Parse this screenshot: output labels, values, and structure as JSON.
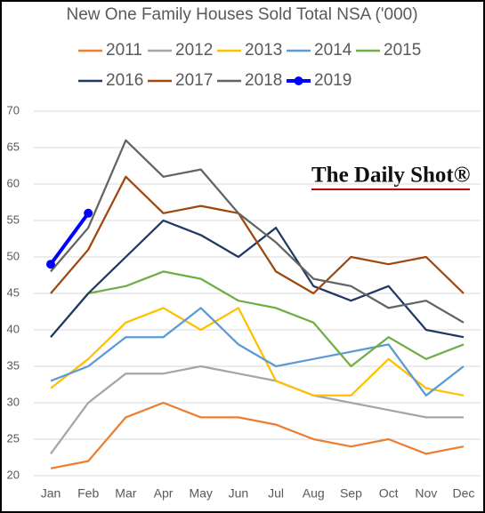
{
  "chart_data": {
    "type": "line",
    "title": "New One Family Houses Sold Total NSA ('000)",
    "watermark": "The Daily Shot®",
    "categories": [
      "Jan",
      "Feb",
      "Mar",
      "Apr",
      "May",
      "Jun",
      "Jul",
      "Aug",
      "Sep",
      "Oct",
      "Nov",
      "Dec"
    ],
    "series": [
      {
        "name": "2011",
        "color": "#ed7d31",
        "values": [
          21,
          22,
          28,
          30,
          28,
          28,
          27,
          25,
          24,
          25,
          23,
          24
        ]
      },
      {
        "name": "2012",
        "color": "#a5a5a5",
        "values": [
          23,
          30,
          34,
          34,
          35,
          34,
          33,
          31,
          30,
          29,
          28,
          28
        ]
      },
      {
        "name": "2013",
        "color": "#ffc000",
        "values": [
          32,
          36,
          41,
          43,
          40,
          43,
          33,
          31,
          31,
          36,
          32,
          31
        ]
      },
      {
        "name": "2014",
        "color": "#5b9bd5",
        "values": [
          33,
          35,
          39,
          39,
          43,
          38,
          35,
          36,
          37,
          38,
          31,
          35
        ]
      },
      {
        "name": "2015",
        "color": "#70ad47",
        "values": [
          39,
          45,
          46,
          48,
          47,
          44,
          43,
          41,
          35,
          39,
          36,
          38
        ]
      },
      {
        "name": "2016",
        "color": "#1f3864",
        "values": [
          39,
          45,
          50,
          55,
          53,
          50,
          54,
          46,
          44,
          46,
          40,
          39
        ]
      },
      {
        "name": "2017",
        "color": "#9e480e",
        "values": [
          45,
          51,
          61,
          56,
          57,
          56,
          48,
          45,
          50,
          49,
          50,
          45
        ]
      },
      {
        "name": "2018",
        "color": "#636363",
        "values": [
          48,
          54,
          66,
          61,
          62,
          56,
          52,
          47,
          46,
          43,
          44,
          41
        ]
      },
      {
        "name": "2019",
        "color": "#0000ff",
        "markers": true,
        "values": [
          49,
          56,
          null,
          null,
          null,
          null,
          null,
          null,
          null,
          null,
          null,
          null
        ]
      }
    ],
    "ylim": [
      20,
      70
    ],
    "yticks": [
      20,
      25,
      30,
      35,
      40,
      45,
      50,
      55,
      60,
      65,
      70
    ],
    "grid": true
  }
}
